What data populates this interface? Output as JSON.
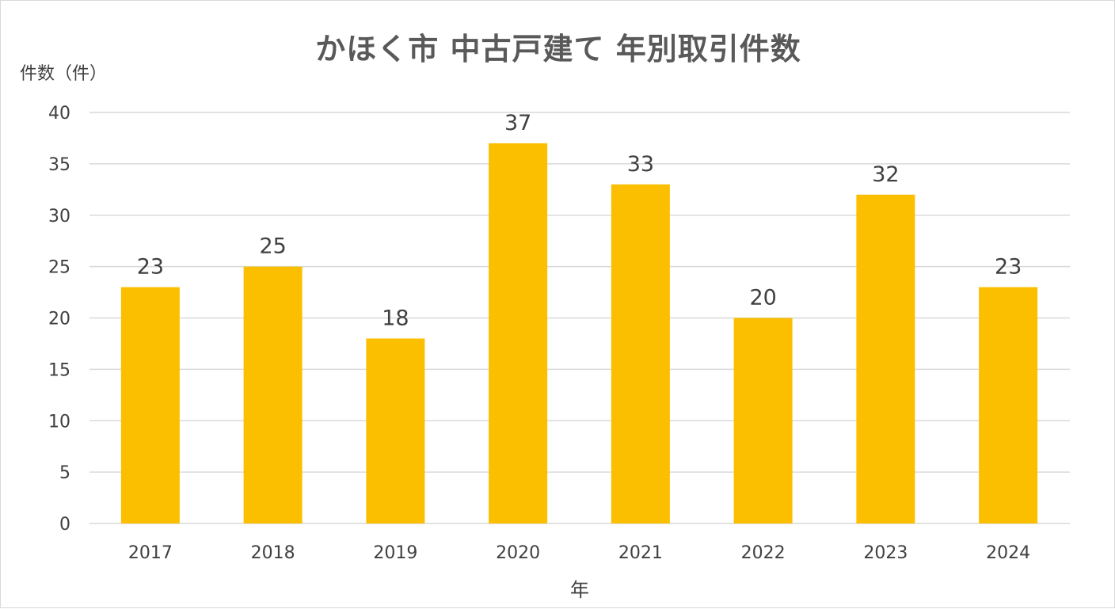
{
  "chart_data": {
    "type": "bar",
    "title": "かほく市 中古戸建て 年別取引件数",
    "xlabel": "年",
    "ylabel": "件数（件）",
    "categories": [
      "2017",
      "2018",
      "2019",
      "2020",
      "2021",
      "2022",
      "2023",
      "2024"
    ],
    "values": [
      23,
      25,
      18,
      37,
      33,
      20,
      32,
      23
    ],
    "ylim": [
      0,
      40
    ],
    "yticks": [
      0,
      5,
      10,
      15,
      20,
      25,
      30,
      35,
      40
    ],
    "grid": true,
    "data_labels": true,
    "legend": "none",
    "colors": {
      "bar": "#FBBF00",
      "gridline": "#D9D9D9",
      "text": "#404040",
      "title": "#595959"
    }
  }
}
